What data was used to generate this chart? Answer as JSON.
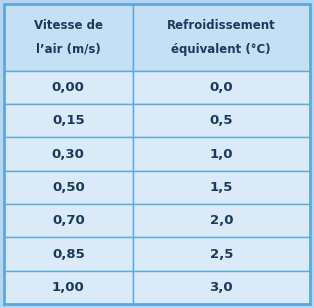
{
  "col1_header_line1": "Vitesse de",
  "col1_header_line2": "l’air (m/s)",
  "col2_header_line1": "Refroidissement",
  "col2_header_line2": "équivalent (°C)",
  "col1_values": [
    "0,00",
    "0,15",
    "0,30",
    "0,50",
    "0,70",
    "0,85",
    "1,00"
  ],
  "col2_values": [
    "0,0",
    "0,5",
    "1,0",
    "1,5",
    "2,0",
    "2,5",
    "3,0"
  ],
  "header_bg": "#c5dff5",
  "row_bg": "#daeaf8",
  "border_color": "#5baade",
  "text_color": "#1a3a5c",
  "header_fontsize": 8.5,
  "cell_fontsize": 9.5,
  "fig_bg": "#b8d4ee"
}
